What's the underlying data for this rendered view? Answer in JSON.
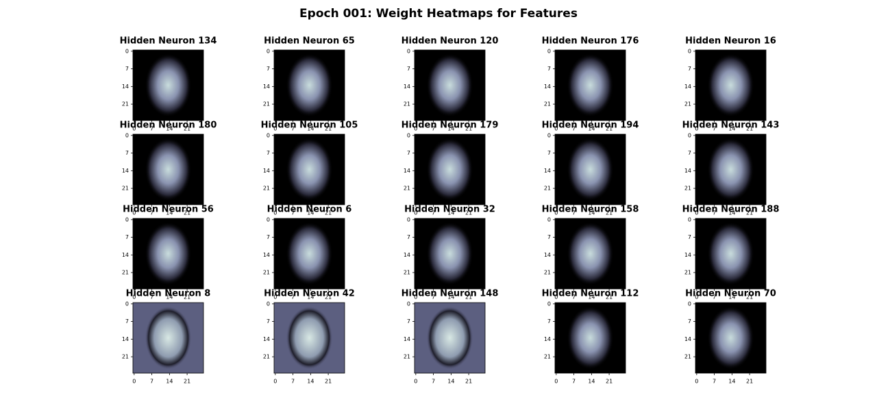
{
  "title": "Epoch 001: Weight Heatmaps for Features",
  "chart_data": [
    {
      "type": "heatmap",
      "title": "Hidden Neuron 134",
      "xlim": [
        -0.5,
        27.5
      ],
      "ylim": [
        27.5,
        -0.5
      ],
      "xticks": [
        0,
        7,
        14,
        21
      ],
      "yticks": [
        0,
        7,
        14,
        21
      ]
    },
    {
      "type": "heatmap",
      "title": "Hidden Neuron 65",
      "xlim": [
        -0.5,
        27.5
      ],
      "ylim": [
        27.5,
        -0.5
      ],
      "xticks": [
        0,
        7,
        14,
        21
      ],
      "yticks": [
        0,
        7,
        14,
        21
      ]
    },
    {
      "type": "heatmap",
      "title": "Hidden Neuron 120",
      "xlim": [
        -0.5,
        27.5
      ],
      "ylim": [
        27.5,
        -0.5
      ],
      "xticks": [
        0,
        7,
        14,
        21
      ],
      "yticks": [
        0,
        7,
        14,
        21
      ]
    },
    {
      "type": "heatmap",
      "title": "Hidden Neuron 176",
      "xlim": [
        -0.5,
        27.5
      ],
      "ylim": [
        27.5,
        -0.5
      ],
      "xticks": [
        0,
        7,
        14,
        21
      ],
      "yticks": [
        0,
        7,
        14,
        21
      ]
    },
    {
      "type": "heatmap",
      "title": "Hidden Neuron 16",
      "xlim": [
        -0.5,
        27.5
      ],
      "ylim": [
        27.5,
        -0.5
      ],
      "xticks": [
        0,
        7,
        14,
        21
      ],
      "yticks": [
        0,
        7,
        14,
        21
      ]
    },
    {
      "type": "heatmap",
      "title": "Hidden Neuron 180",
      "xlim": [
        -0.5,
        27.5
      ],
      "ylim": [
        27.5,
        -0.5
      ],
      "xticks": [
        0,
        7,
        14,
        21
      ],
      "yticks": [
        0,
        7,
        14,
        21
      ]
    },
    {
      "type": "heatmap",
      "title": "Hidden Neuron 105",
      "xlim": [
        -0.5,
        27.5
      ],
      "ylim": [
        27.5,
        -0.5
      ],
      "xticks": [
        0,
        7,
        14,
        21
      ],
      "yticks": [
        0,
        7,
        14,
        21
      ]
    },
    {
      "type": "heatmap",
      "title": "Hidden Neuron 179",
      "xlim": [
        -0.5,
        27.5
      ],
      "ylim": [
        27.5,
        -0.5
      ],
      "xticks": [
        0,
        7,
        14,
        21
      ],
      "yticks": [
        0,
        7,
        14,
        21
      ]
    },
    {
      "type": "heatmap",
      "title": "Hidden Neuron 194",
      "xlim": [
        -0.5,
        27.5
      ],
      "ylim": [
        27.5,
        -0.5
      ],
      "xticks": [
        0,
        7,
        14,
        21
      ],
      "yticks": [
        0,
        7,
        14,
        21
      ]
    },
    {
      "type": "heatmap",
      "title": "Hidden Neuron 143",
      "xlim": [
        -0.5,
        27.5
      ],
      "ylim": [
        27.5,
        -0.5
      ],
      "xticks": [
        0,
        7,
        14,
        21
      ],
      "yticks": [
        0,
        7,
        14,
        21
      ]
    },
    {
      "type": "heatmap",
      "title": "Hidden Neuron 56",
      "xlim": [
        -0.5,
        27.5
      ],
      "ylim": [
        27.5,
        -0.5
      ],
      "xticks": [
        0,
        7,
        14,
        21
      ],
      "yticks": [
        0,
        7,
        14,
        21
      ]
    },
    {
      "type": "heatmap",
      "title": "Hidden Neuron 6",
      "xlim": [
        -0.5,
        27.5
      ],
      "ylim": [
        27.5,
        -0.5
      ],
      "xticks": [
        0,
        7,
        14,
        21
      ],
      "yticks": [
        0,
        7,
        14,
        21
      ]
    },
    {
      "type": "heatmap",
      "title": "Hidden Neuron 32",
      "xlim": [
        -0.5,
        27.5
      ],
      "ylim": [
        27.5,
        -0.5
      ],
      "xticks": [
        0,
        7,
        14,
        21
      ],
      "yticks": [
        0,
        7,
        14,
        21
      ]
    },
    {
      "type": "heatmap",
      "title": "Hidden Neuron 158",
      "xlim": [
        -0.5,
        27.5
      ],
      "ylim": [
        27.5,
        -0.5
      ],
      "xticks": [
        0,
        7,
        14,
        21
      ],
      "yticks": [
        0,
        7,
        14,
        21
      ]
    },
    {
      "type": "heatmap",
      "title": "Hidden Neuron 188",
      "xlim": [
        -0.5,
        27.5
      ],
      "ylim": [
        27.5,
        -0.5
      ],
      "xticks": [
        0,
        7,
        14,
        21
      ],
      "yticks": [
        0,
        7,
        14,
        21
      ]
    },
    {
      "type": "heatmap",
      "title": "Hidden Neuron 8",
      "xlim": [
        -0.5,
        27.5
      ],
      "ylim": [
        27.5,
        -0.5
      ],
      "xticks": [
        0,
        7,
        14,
        21
      ],
      "yticks": [
        0,
        7,
        14,
        21
      ]
    },
    {
      "type": "heatmap",
      "title": "Hidden Neuron 42",
      "xlim": [
        -0.5,
        27.5
      ],
      "ylim": [
        27.5,
        -0.5
      ],
      "xticks": [
        0,
        7,
        14,
        21
      ],
      "yticks": [
        0,
        7,
        14,
        21
      ]
    },
    {
      "type": "heatmap",
      "title": "Hidden Neuron 148",
      "xlim": [
        -0.5,
        27.5
      ],
      "ylim": [
        27.5,
        -0.5
      ],
      "xticks": [
        0,
        7,
        14,
        21
      ],
      "yticks": [
        0,
        7,
        14,
        21
      ]
    },
    {
      "type": "heatmap",
      "title": "Hidden Neuron 112",
      "xlim": [
        -0.5,
        27.5
      ],
      "ylim": [
        27.5,
        -0.5
      ],
      "xticks": [
        0,
        7,
        14,
        21
      ],
      "yticks": [
        0,
        7,
        14,
        21
      ]
    },
    {
      "type": "heatmap",
      "title": "Hidden Neuron 70",
      "xlim": [
        -0.5,
        27.5
      ],
      "ylim": [
        27.5,
        -0.5
      ],
      "xticks": [
        0,
        7,
        14,
        21
      ],
      "yticks": [
        0,
        7,
        14,
        21
      ]
    }
  ]
}
